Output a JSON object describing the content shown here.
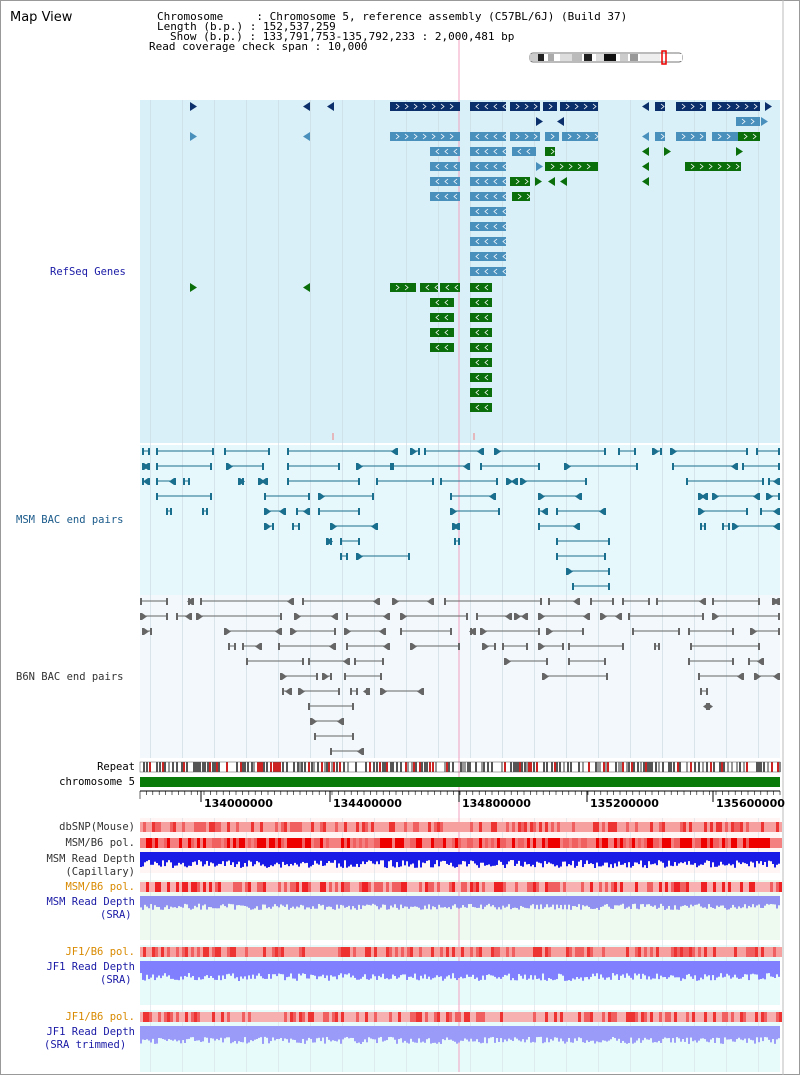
{
  "title": "Map View",
  "info": {
    "chromosome": "Chromosome     : Chromosome 5, reference assembly (C57BL/6J) (Build 37)",
    "length": "Length (b.p.) : 152,537,259",
    "show": "Show (b.p.) : 133,791,753-135,792,233 : 2,000,481 bp",
    "coverage": "Read coverage check span : 10,000"
  },
  "tracks": {
    "refseq": "RefSeq Genes",
    "msm_bac": "MSM BAC end pairs",
    "b6n_bac": "B6N BAC end pairs",
    "repeat": "Repeat",
    "chromosome": "chromosome 5",
    "dbsnp": "dbSNP(Mouse)",
    "msm_pol": "MSM/B6 pol.",
    "msm_depth_cap": "MSM Read Depth",
    "capillary": "(Capillary)",
    "msm_pol2": "MSM/B6 pol.",
    "msm_depth_sra": "MSM Read Depth",
    "sra1": "(SRA)",
    "jf1_pol": "JF1/B6 pol.",
    "jf1_depth": "JF1 Read Depth",
    "sra2": "(SRA)",
    "jf1_pol2": "JF1/B6 pol.",
    "jf1_depth_trim": "JF1 Read Depth",
    "sra_trimmed": "(SRA trimmed)"
  },
  "ticks": [
    "134000000",
    "134400000",
    "134800000",
    "135200000",
    "135600000"
  ],
  "colors": {
    "gene_dark": "#0b2f6b",
    "gene_mid": "#4a90bd",
    "gene_green": "#0a6e0a",
    "refseq_bg": "#d9f0f9",
    "msm_bg": "#e6f8fb",
    "b6n_bg": "#f2f8fb",
    "chrom_green": "#0a7a0a",
    "snp_red": "#ee4444",
    "depth_blue": "#1a1ae6",
    "depth_light": "#8080ff"
  }
}
